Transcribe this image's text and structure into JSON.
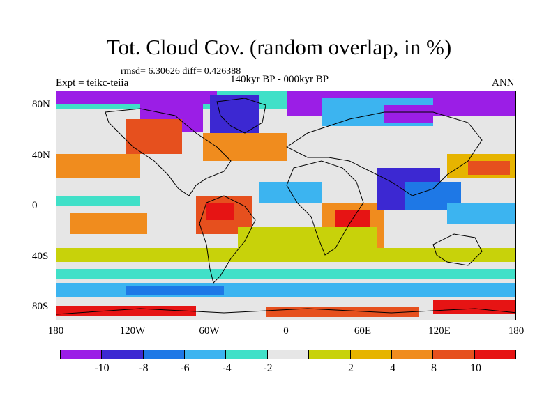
{
  "title": "Tot. Cloud Cov. (random overlap, in %)",
  "stats": "rmsd= 6.30626 diff= 0.426388",
  "experiment": "Expt = teikc-teiia",
  "period": "140kyr BP - 000kyr BP",
  "season": "ANN",
  "lat_labels": [
    "80N",
    "40N",
    "0",
    "40S",
    "80S"
  ],
  "lon_labels": [
    "180",
    "120W",
    "60W",
    "0",
    "60E",
    "120E",
    "180"
  ],
  "colorbar": {
    "colors": [
      "#9b1ee6",
      "#3c28d2",
      "#1e78e6",
      "#3cb4f0",
      "#40e0c8",
      "#e6e6e6",
      "#c8d20a",
      "#e6b400",
      "#f08c1e",
      "#e6501e",
      "#e61414"
    ],
    "labels": [
      "-10",
      "-8",
      "-6",
      "-4",
      "-2",
      "2",
      "4",
      "8",
      "10"
    ]
  }
}
